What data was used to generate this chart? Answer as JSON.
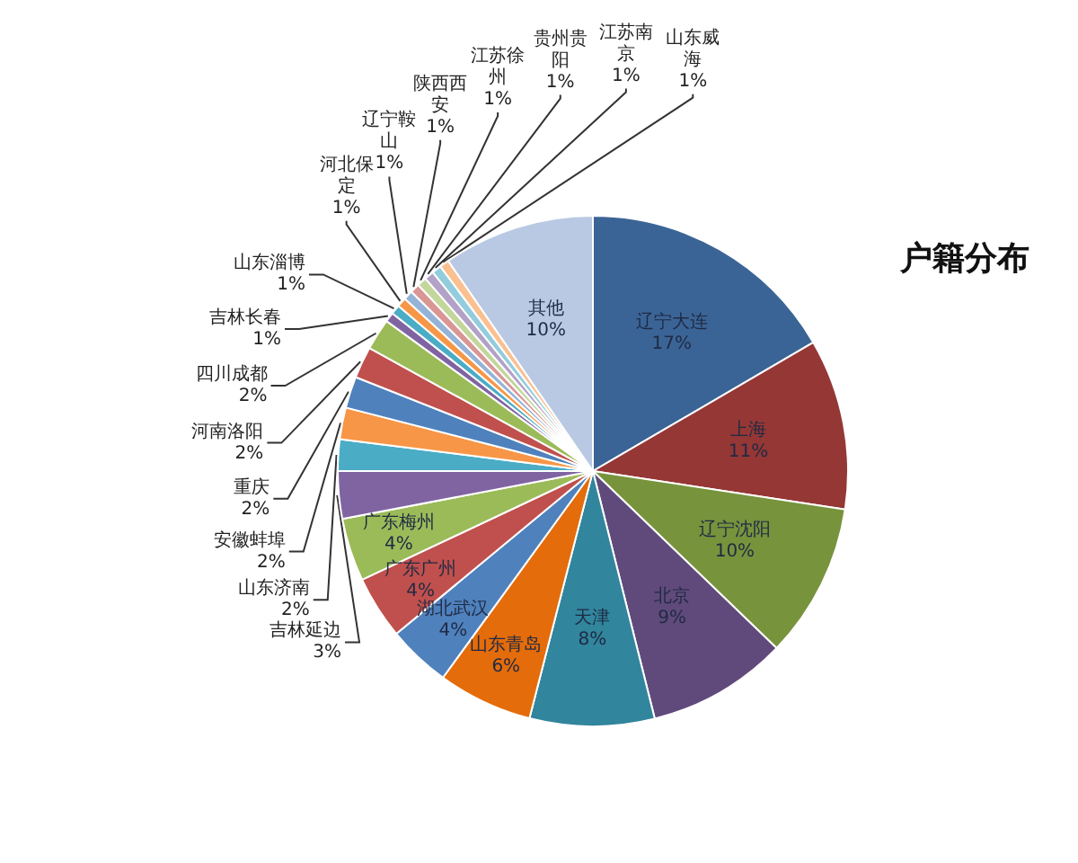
{
  "chart_data": {
    "type": "pie",
    "title": "户籍分布",
    "categories": [
      "辽宁大连",
      "上海",
      "辽宁沈阳",
      "北京",
      "天津",
      "山东青岛",
      "湖北武汉",
      "广东广州",
      "广东梅州",
      "吉林延边",
      "山东济南",
      "安徽蚌埠",
      "重庆",
      "河南洛阳",
      "四川成都",
      "吉林长春",
      "山东淄博",
      "河北保定",
      "辽宁鞍山",
      "陕西西安",
      "江苏徐州",
      "贵州贵阳",
      "江苏南京",
      "山东威海",
      "其他"
    ],
    "values": [
      16.6,
      10.8,
      9.8,
      8.9,
      7.9,
      6,
      4,
      4,
      4,
      3,
      2,
      2,
      2,
      2,
      2,
      0.6,
      0.6,
      0.6,
      0.6,
      0.6,
      0.6,
      0.6,
      0.6,
      0.6,
      9.6
    ],
    "value_labels": [
      "17%",
      "11%",
      "10%",
      "9%",
      "8%",
      "6%",
      "4%",
      "4%",
      "4%",
      "3%",
      "2%",
      "2%",
      "2%",
      "2%",
      "2%",
      "1%",
      "1%",
      "1%",
      "1%",
      "1%",
      "1%",
      "1%",
      "1%",
      "1%",
      "10%"
    ],
    "colors": [
      "#3b6496",
      "#953735",
      "#77933c",
      "#604a7b",
      "#31859c",
      "#e46c0a",
      "#4f81bd",
      "#c0504d",
      "#9bbb59",
      "#8064a2",
      "#4bacc6",
      "#f79646",
      "#4f81bd",
      "#c0504d",
      "#9bbb59",
      "#8064a2",
      "#4bacc6",
      "#f79646",
      "#95b3d7",
      "#d99694",
      "#c3d69b",
      "#b3a2c7",
      "#93cddd",
      "#fac090",
      "#b9c9e3"
    ],
    "legend": false
  }
}
